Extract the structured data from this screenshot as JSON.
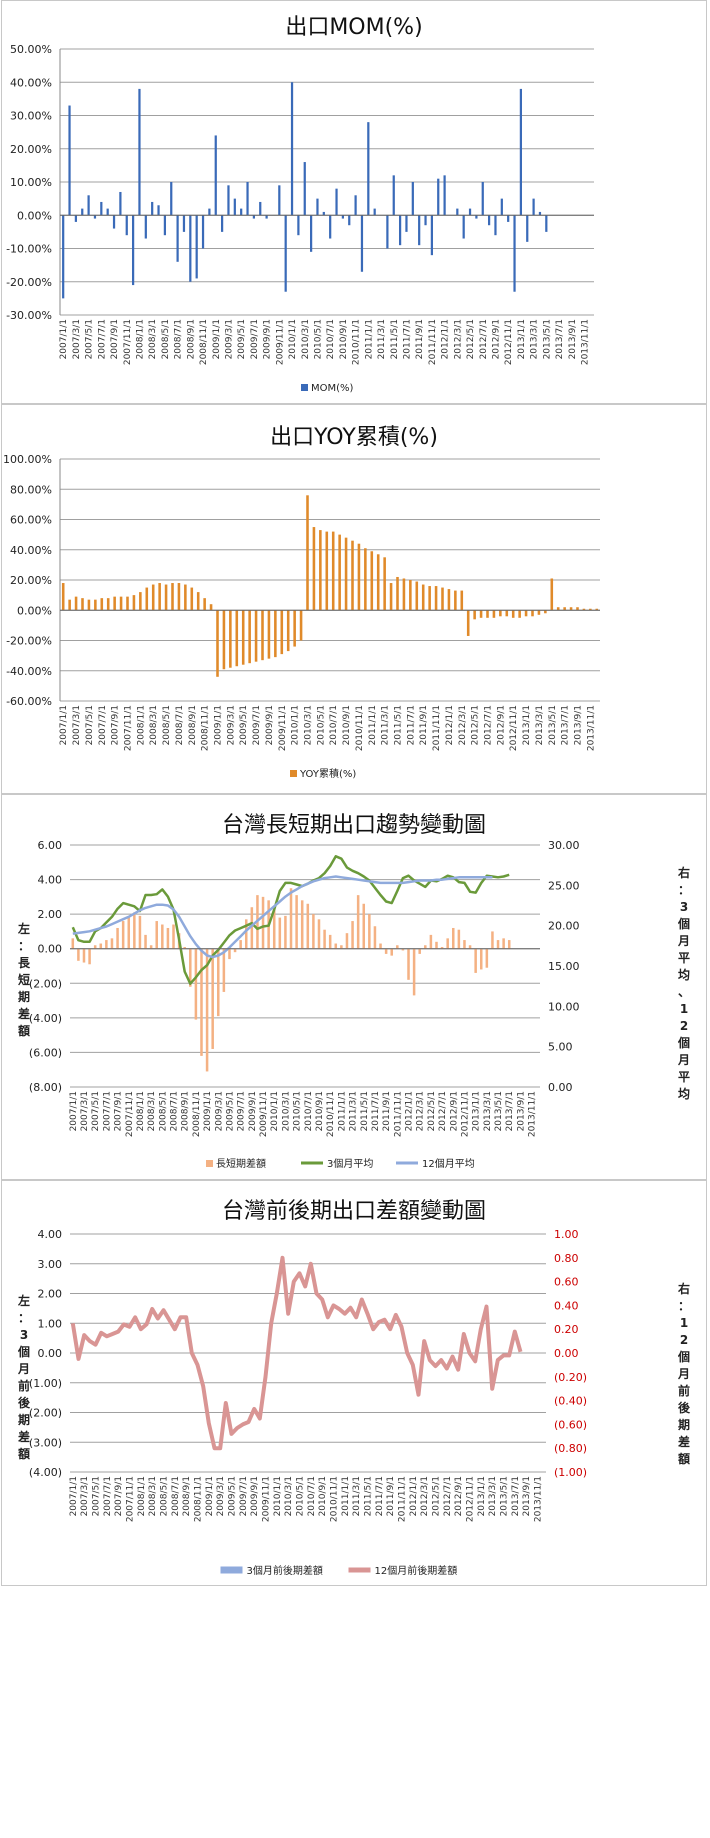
{
  "chart_data": [
    {
      "type": "bar",
      "title": "出口MOM(%)",
      "x_start": "2007/1/1",
      "x_end": "2013/12/1",
      "x_ticks": [
        "2007/1/1",
        "2007/3/1",
        "2007/5/1",
        "2007/7/1",
        "2007/9/1",
        "2007/11/1",
        "2008/1/1",
        "2008/3/1",
        "2008/5/1",
        "2008/7/1",
        "2008/9/1",
        "2008/11/1",
        "2009/1/1",
        "2009/3/1",
        "2009/5/1",
        "2009/7/1",
        "2009/9/1",
        "2009/11/1",
        "2010/1/1",
        "2010/3/1",
        "2010/5/1",
        "2010/7/1",
        "2010/9/1",
        "2010/11/1",
        "2011/1/1",
        "2011/3/1",
        "2011/5/1",
        "2011/7/1",
        "2011/9/1",
        "2011/11/1",
        "2012/1/1",
        "2012/3/1",
        "2012/5/1",
        "2012/7/1",
        "2012/9/1",
        "2012/11/1",
        "2013/1/1",
        "2013/3/1",
        "2013/5/1",
        "2013/7/1",
        "2013/9/1",
        "2013/11/1"
      ],
      "y_ticks": [
        "50.00%",
        "40.00%",
        "30.00%",
        "20.00%",
        "10.00%",
        "0.00%",
        "-10.00%",
        "-20.00%",
        "-30.00%"
      ],
      "ylim": [
        -30,
        50
      ],
      "grid": true,
      "legend_position": "bottom",
      "series": [
        {
          "name": "MOM(%)",
          "color": "#3a6ab8",
          "values": [
            -25,
            33,
            -2,
            2,
            6,
            -1,
            4,
            2,
            -4,
            7,
            -6,
            -21,
            38,
            -7,
            4,
            3,
            -6,
            10,
            -14,
            -5,
            -20,
            -19,
            -10,
            2,
            24,
            -5,
            9,
            5,
            2,
            10,
            -1,
            4,
            -1,
            0,
            9,
            -23,
            40,
            -6,
            16,
            -11,
            5,
            1,
            -7,
            8,
            -1,
            -3,
            6,
            -17,
            28,
            2,
            0,
            -10,
            12,
            -9,
            -5,
            10,
            -9,
            -3,
            -12,
            11,
            12,
            0,
            2,
            -7,
            2,
            -1,
            10,
            -3,
            -6,
            5,
            -2,
            -23,
            38,
            -8,
            5,
            1,
            -5,
            0,
            0,
            0,
            0,
            0,
            0,
            0
          ]
        }
      ]
    },
    {
      "type": "bar",
      "title": "出口YOY累積(%)",
      "x_start": "2007/1/1",
      "x_end": "2013/12/1",
      "y_ticks": [
        "100.00%",
        "80.00%",
        "60.00%",
        "40.00%",
        "20.00%",
        "0.00%",
        "-20.00%",
        "-40.00%",
        "-60.00%"
      ],
      "ylim": [
        -60,
        100
      ],
      "grid": true,
      "legend_position": "bottom",
      "series": [
        {
          "name": "YOY累積(%)",
          "color": "#e08a2a",
          "values": [
            18,
            7,
            9,
            8,
            7,
            7,
            8,
            8,
            9,
            9,
            9,
            10,
            12,
            15,
            17,
            18,
            17,
            18,
            18,
            17,
            15,
            12,
            8,
            4,
            -44,
            -39,
            -38,
            -37,
            -36,
            -35,
            -34,
            -33,
            -32,
            -31,
            -29,
            -27,
            -24,
            -20,
            76,
            55,
            53,
            52,
            52,
            50,
            48,
            46,
            44,
            41,
            39,
            37,
            35,
            18,
            22,
            21,
            20,
            19,
            17,
            16,
            16,
            15,
            14,
            13,
            13,
            -17,
            -6,
            -5,
            -5,
            -5,
            -4,
            -4,
            -5,
            -5,
            -4,
            -4,
            -3,
            -2,
            21,
            2,
            2,
            2,
            2,
            1,
            1,
            1
          ]
        }
      ]
    },
    {
      "type": "bar",
      "title": "台灣長短期出口趨勢變動圖",
      "x_start": "2007/1/1",
      "x_end": "2013/12/1",
      "y_left_ticks": [
        "6.00",
        "4.00",
        "2.00",
        "0.00",
        "(2.00)",
        "(4.00)",
        "(6.00)",
        "(8.00)"
      ],
      "ylim_left": [
        -8,
        6
      ],
      "y_right_ticks": [
        "30.00",
        "25.00",
        "20.00",
        "15.00",
        "10.00",
        "5.00",
        "0.00"
      ],
      "ylim_right": [
        0,
        30
      ],
      "ylabel_left": "左：長短期差額",
      "ylabel_right": "右：3個月平均、12個月平均",
      "grid": true,
      "legend_position": "bottom",
      "series": [
        {
          "name": "長短期差額",
          "axis": "left",
          "type": "bar",
          "color": "#f4b183",
          "values": [
            0.6,
            -0.7,
            -0.8,
            -0.9,
            0.2,
            0.3,
            0.5,
            0.6,
            1.2,
            1.6,
            1.8,
            2.1,
            1.9,
            0.8,
            0.2,
            1.6,
            1.4,
            1.2,
            1.4,
            0.9,
            0.1,
            -2.2,
            -4.1,
            -6.2,
            -7.1,
            -5.8,
            -3.9,
            -2.5,
            -0.6,
            -0.2,
            0.5,
            1.7,
            2.4,
            3.1,
            3.0,
            2.8,
            2.4,
            1.8,
            1.9,
            3.5,
            3.1,
            2.8,
            2.6,
            2.0,
            1.7,
            1.1,
            0.8,
            0.3,
            0.2,
            0.9,
            1.6,
            3.1,
            2.6,
            2.0,
            1.3,
            0.3,
            -0.3,
            -0.4,
            0.2,
            -0.1,
            -1.8,
            -2.7,
            -0.3,
            0.2,
            0.8,
            0.4,
            0.1,
            0.6,
            1.2,
            1.1,
            0.5,
            0.2,
            -1.4,
            -1.2,
            -1.1,
            1.0,
            0.5,
            0.6,
            0.5,
            0,
            0,
            0,
            0,
            0
          ]
        },
        {
          "name": "3個月平均",
          "axis": "right",
          "type": "line",
          "color": "#6a9a3a",
          "values": [
            19.8,
            18.2,
            18.0,
            18.0,
            19.3,
            19.7,
            20.4,
            21.1,
            22.1,
            22.8,
            22.6,
            22.4,
            21.8,
            23.8,
            23.8,
            23.9,
            24.5,
            23.6,
            22.0,
            18.3,
            14.3,
            12.8,
            13.6,
            14.5,
            15.1,
            16.3,
            17.0,
            17.9,
            18.8,
            19.4,
            19.7,
            20.0,
            20.3,
            19.6,
            19.9,
            20.0,
            22.0,
            24.3,
            25.3,
            25.3,
            25.1,
            24.9,
            25.2,
            25.6,
            25.9,
            26.5,
            27.4,
            28.6,
            28.3,
            27.2,
            26.8,
            26.5,
            26.1,
            25.6,
            24.7,
            23.8,
            23.0,
            22.8,
            24.3,
            25.9,
            26.2,
            25.6,
            25.2,
            24.8,
            25.6,
            25.5,
            25.8,
            26.2,
            26.0,
            25.4,
            25.3,
            24.2,
            24.1,
            25.3,
            26.2,
            26.1,
            26.0,
            26.1,
            26.3,
            0,
            0,
            0,
            0,
            0
          ]
        },
        {
          "name": "12個月平均",
          "axis": "right",
          "type": "line",
          "color": "#8faadc",
          "values": [
            19.0,
            19.1,
            19.2,
            19.3,
            19.5,
            19.7,
            19.9,
            20.2,
            20.5,
            20.8,
            21.1,
            21.5,
            21.9,
            22.2,
            22.4,
            22.6,
            22.6,
            22.5,
            22.0,
            21.1,
            19.9,
            18.7,
            17.7,
            16.9,
            16.3,
            16.1,
            16.3,
            16.7,
            17.3,
            18.0,
            18.7,
            19.4,
            20.0,
            20.6,
            21.2,
            21.8,
            22.4,
            23.0,
            23.6,
            24.1,
            24.5,
            24.9,
            25.2,
            25.5,
            25.7,
            25.9,
            26.0,
            26.1,
            26.0,
            25.9,
            25.8,
            25.7,
            25.6,
            25.5,
            25.4,
            25.3,
            25.3,
            25.3,
            25.3,
            25.3,
            25.4,
            25.5,
            25.6,
            25.6,
            25.6,
            25.7,
            25.7,
            25.8,
            25.9,
            26.0,
            26.0,
            26.0,
            26.0,
            26.0,
            26.0,
            26.0,
            0,
            0,
            0,
            0,
            0,
            0,
            0,
            0
          ]
        }
      ]
    },
    {
      "type": "line",
      "title": "台灣前後期出口差額變動圖",
      "x_start": "2007/1/1",
      "x_end": "2013/12/1",
      "y_left_ticks": [
        "4.00",
        "3.00",
        "2.00",
        "1.00",
        "0.00",
        "(1.00)",
        "(2.00)",
        "(3.00)",
        "(4.00)"
      ],
      "ylim_left": [
        -4,
        4
      ],
      "y_right_ticks": [
        "1.00",
        "0.80",
        "0.60",
        "0.40",
        "0.20",
        "0.00",
        "(0.20)",
        "(0.40)",
        "(0.60)",
        "(0.80)",
        "(1.00)"
      ],
      "ylim_right": [
        -1,
        1
      ],
      "ylabel_left": "左：3個月前後期差額",
      "ylabel_right": "右：12個月前後期差額",
      "grid": true,
      "legend_position": "bottom",
      "series": [
        {
          "name": "3個月前後期差額",
          "axis": "left",
          "color": "#8faadc",
          "values": []
        },
        {
          "name": "12個月前後期差額",
          "axis": "right",
          "color": "#d99594",
          "values": [
            0.25,
            -0.05,
            0.15,
            0.1,
            0.07,
            0.17,
            0.14,
            0.16,
            0.18,
            0.24,
            0.22,
            0.3,
            0.2,
            0.24,
            0.37,
            0.29,
            0.36,
            0.28,
            0.2,
            0.3,
            0.3,
            0.0,
            -0.1,
            -0.28,
            -0.59,
            -0.8,
            -0.8,
            -0.42,
            -0.68,
            -0.63,
            -0.6,
            -0.58,
            -0.47,
            -0.55,
            -0.2,
            0.25,
            0.5,
            0.8,
            0.33,
            0.6,
            0.67,
            0.56,
            0.75,
            0.5,
            0.45,
            0.3,
            0.4,
            0.37,
            0.33,
            0.38,
            0.3,
            0.45,
            0.33,
            0.2,
            0.26,
            0.28,
            0.2,
            0.32,
            0.22,
            0.0,
            -0.1,
            -0.35,
            0.1,
            -0.06,
            -0.11,
            -0.06,
            -0.13,
            -0.03,
            -0.14,
            0.16,
            0.0,
            -0.07,
            0.2,
            0.39,
            -0.3,
            -0.06,
            -0.02,
            -0.02,
            0.18,
            0.01,
            0.0,
            0.0,
            0.0,
            0.0
          ]
        }
      ]
    }
  ]
}
